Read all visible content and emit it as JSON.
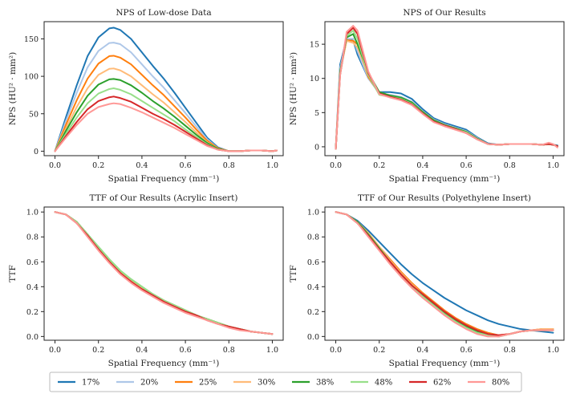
{
  "series_legend": [
    {
      "name": "17%",
      "color": "#1f77b4"
    },
    {
      "name": "20%",
      "color": "#aec7e8"
    },
    {
      "name": "25%",
      "color": "#ff7f0e"
    },
    {
      "name": "30%",
      "color": "#ffbb78"
    },
    {
      "name": "38%",
      "color": "#2ca02c"
    },
    {
      "name": "48%",
      "color": "#98df8a"
    },
    {
      "name": "62%",
      "color": "#d62728"
    },
    {
      "name": "80%",
      "color": "#ff9896"
    }
  ],
  "chart_data": [
    {
      "type": "line",
      "title": "NPS of Low-dose Data",
      "xlabel": "Spatial Frequency (mm⁻¹)",
      "ylabel": "NPS (HU² · mm²)",
      "xlim": [
        -0.05,
        1.05
      ],
      "ylim": [
        -6,
        173
      ],
      "xticks": [
        0,
        0.2,
        0.4,
        0.6,
        0.8,
        1.0
      ],
      "xtick_labels": [
        "0.0",
        "0.2",
        "0.4",
        "0.6",
        "0.8",
        "1.0"
      ],
      "yticks": [
        0,
        50,
        100,
        150
      ],
      "ytick_labels": [
        "0",
        "50",
        "100",
        "150"
      ],
      "x": [
        0,
        0.05,
        0.1,
        0.15,
        0.2,
        0.25,
        0.27,
        0.3,
        0.35,
        0.4,
        0.45,
        0.5,
        0.55,
        0.6,
        0.65,
        0.7,
        0.75,
        0.8,
        0.85,
        0.9,
        0.95,
        1.0,
        1.02
      ],
      "series": [
        {
          "name": "17%",
          "values": [
            0,
            45,
            88,
            127,
            152,
            164,
            165,
            162,
            150,
            132,
            114,
            97,
            78,
            58,
            38,
            18,
            5,
            0,
            0,
            1,
            1,
            0,
            1
          ]
        },
        {
          "name": "20%",
          "values": [
            0,
            40,
            78,
            112,
            134,
            144.5,
            145,
            143,
            132,
            116,
            100,
            85,
            68,
            51,
            33,
            16,
            4,
            0,
            0,
            1,
            1,
            0,
            1
          ]
        },
        {
          "name": "25%",
          "values": [
            0,
            35,
            68,
            97,
            117,
            127,
            127.5,
            125,
            116,
            102,
            88,
            75,
            60,
            45,
            29,
            14,
            4,
            0,
            0,
            1,
            1,
            0,
            1
          ]
        },
        {
          "name": "30%",
          "values": [
            0,
            30,
            59,
            84,
            102,
            110,
            110.5,
            108,
            100,
            88,
            76,
            65,
            52,
            39,
            25,
            12,
            3,
            0,
            0,
            1,
            1,
            0,
            1
          ]
        },
        {
          "name": "38%",
          "values": [
            0,
            27,
            52,
            74,
            89,
            96,
            96.5,
            95,
            88,
            78,
            67,
            57,
            46,
            34,
            22,
            11,
            3,
            0,
            0,
            1,
            1,
            0,
            1
          ]
        },
        {
          "name": "48%",
          "values": [
            0,
            23,
            45,
            64,
            77,
            83,
            84,
            82,
            76,
            67,
            58,
            49,
            40,
            29,
            19,
            9,
            2,
            0,
            0,
            1,
            1,
            0,
            1
          ]
        },
        {
          "name": "62%",
          "values": [
            0,
            20,
            39,
            56,
            67,
            72,
            73,
            71,
            66,
            58,
            50,
            43,
            35,
            26,
            17,
            8,
            2,
            0,
            0,
            1,
            1,
            0,
            1
          ]
        },
        {
          "name": "80%",
          "values": [
            0,
            18,
            35,
            50,
            59,
            63,
            64,
            63,
            58,
            52,
            45,
            38,
            31,
            23,
            15,
            7,
            2,
            0,
            0,
            1,
            1,
            0,
            1
          ]
        }
      ]
    },
    {
      "type": "line",
      "title": "NPS of Our Results",
      "xlabel": "Spatial Frequency (mm⁻¹)",
      "ylabel": "NPS (HU² · mm²)",
      "xlim": [
        -0.05,
        1.05
      ],
      "ylim": [
        -1.3,
        18.3
      ],
      "xticks": [
        0,
        0.2,
        0.4,
        0.6,
        0.8,
        1.0
      ],
      "xtick_labels": [
        "0.0",
        "0.2",
        "0.4",
        "0.6",
        "0.8",
        "1.0"
      ],
      "yticks": [
        0,
        5,
        10,
        15
      ],
      "ytick_labels": [
        "0",
        "5",
        "10",
        "15"
      ],
      "x": [
        0,
        0.02,
        0.05,
        0.08,
        0.1,
        0.15,
        0.2,
        0.25,
        0.3,
        0.35,
        0.4,
        0.45,
        0.5,
        0.55,
        0.6,
        0.65,
        0.7,
        0.75,
        0.8,
        0.85,
        0.9,
        0.95,
        0.98,
        1.0,
        1.02
      ],
      "series": [
        {
          "name": "17%",
          "values": [
            -0.3,
            12,
            15.8,
            15.6,
            13.5,
            10,
            8,
            8,
            7.8,
            7,
            5.5,
            4.2,
            3.5,
            3,
            2.5,
            1.4,
            0.5,
            0.3,
            0.4,
            0.4,
            0.4,
            0.3,
            0.4,
            0.3,
            0.2
          ]
        },
        {
          "name": "20%",
          "values": [
            -0.3,
            11.5,
            15.8,
            15.8,
            14,
            10,
            7.8,
            7.6,
            7.3,
            6.6,
            5.2,
            4,
            3.3,
            2.8,
            2.3,
            1.3,
            0.4,
            0.3,
            0.4,
            0.4,
            0.4,
            0.3,
            0.4,
            0.3,
            0.1
          ]
        },
        {
          "name": "25%",
          "values": [
            -0.3,
            11,
            15.6,
            15.5,
            15,
            10.2,
            7.8,
            7.4,
            7.1,
            6.4,
            5.1,
            3.9,
            3.2,
            2.7,
            2.2,
            1.2,
            0.4,
            0.3,
            0.4,
            0.4,
            0.4,
            0.3,
            0.4,
            0.3,
            0.1
          ]
        },
        {
          "name": "30%",
          "values": [
            -0.3,
            11,
            15.5,
            15.2,
            14.5,
            10.5,
            8,
            7.5,
            7.1,
            6.5,
            5.1,
            3.9,
            3.2,
            2.7,
            2.2,
            1.2,
            0.4,
            0.3,
            0.4,
            0.4,
            0.4,
            0.3,
            0.4,
            0.3,
            0.1
          ]
        },
        {
          "name": "38%",
          "values": [
            -0.3,
            11,
            16,
            16.5,
            15,
            10.8,
            8,
            7.5,
            7.2,
            6.5,
            5.1,
            3.9,
            3.2,
            2.7,
            2.2,
            1.2,
            0.4,
            0.3,
            0.4,
            0.4,
            0.4,
            0.3,
            0.4,
            0.3,
            0.1
          ]
        },
        {
          "name": "48%",
          "values": [
            -0.3,
            10.5,
            16.2,
            17,
            15.8,
            10.5,
            7.6,
            7.3,
            7,
            6.3,
            4.9,
            3.7,
            3.1,
            2.6,
            2.1,
            1.1,
            0.4,
            0.3,
            0.4,
            0.4,
            0.4,
            0.3,
            0.4,
            0.3,
            0.1
          ]
        },
        {
          "name": "62%",
          "values": [
            -0.3,
            10.5,
            16.5,
            17.4,
            16.5,
            10.8,
            7.8,
            7.3,
            6.9,
            6.2,
            4.9,
            3.7,
            3.1,
            2.6,
            2,
            1.1,
            0.4,
            0.3,
            0.4,
            0.4,
            0.4,
            0.3,
            0.4,
            0.3,
            0.1
          ]
        },
        {
          "name": "80%",
          "values": [
            -0.3,
            10.5,
            16.8,
            17.7,
            17,
            11,
            7.7,
            7.2,
            6.8,
            6.1,
            4.8,
            3.6,
            3,
            2.5,
            2,
            1.1,
            0.4,
            0.3,
            0.4,
            0.4,
            0.4,
            0.3,
            0.6,
            0.4,
            -0.1
          ]
        }
      ]
    },
    {
      "type": "line",
      "title": "TTF of Our Results (Acrylic Insert)",
      "xlabel": "Spatial Frequency (mm⁻¹)",
      "ylabel": "TTF",
      "xlim": [
        -0.05,
        1.05
      ],
      "ylim": [
        -0.03,
        1.04
      ],
      "xticks": [
        0,
        0.2,
        0.4,
        0.6,
        0.8,
        1.0
      ],
      "xtick_labels": [
        "0.0",
        "0.2",
        "0.4",
        "0.6",
        "0.8",
        "1.0"
      ],
      "yticks": [
        0,
        0.2,
        0.4,
        0.6,
        0.8,
        1.0
      ],
      "ytick_labels": [
        "0.0",
        "0.2",
        "0.4",
        "0.6",
        "0.8",
        "1.0"
      ],
      "x": [
        0,
        0.05,
        0.1,
        0.15,
        0.2,
        0.25,
        0.3,
        0.35,
        0.4,
        0.45,
        0.5,
        0.55,
        0.6,
        0.65,
        0.7,
        0.75,
        0.8,
        0.85,
        0.9,
        0.95,
        1.0
      ],
      "series": [
        {
          "name": "17%",
          "values": [
            1,
            0.98,
            0.92,
            0.82,
            0.71,
            0.61,
            0.52,
            0.45,
            0.39,
            0.34,
            0.29,
            0.25,
            0.21,
            0.17,
            0.14,
            0.11,
            0.08,
            0.06,
            0.04,
            0.03,
            0.02
          ]
        },
        {
          "name": "20%",
          "values": [
            1,
            0.98,
            0.92,
            0.82,
            0.71,
            0.61,
            0.52,
            0.45,
            0.39,
            0.34,
            0.29,
            0.25,
            0.21,
            0.17,
            0.14,
            0.11,
            0.08,
            0.06,
            0.04,
            0.03,
            0.02
          ]
        },
        {
          "name": "25%",
          "values": [
            1,
            0.98,
            0.92,
            0.82,
            0.71,
            0.61,
            0.52,
            0.45,
            0.39,
            0.34,
            0.29,
            0.25,
            0.21,
            0.17,
            0.14,
            0.11,
            0.08,
            0.06,
            0.04,
            0.03,
            0.02
          ]
        },
        {
          "name": "30%",
          "values": [
            1,
            0.98,
            0.92,
            0.82,
            0.71,
            0.61,
            0.52,
            0.45,
            0.39,
            0.34,
            0.29,
            0.25,
            0.21,
            0.17,
            0.14,
            0.11,
            0.08,
            0.06,
            0.04,
            0.03,
            0.02
          ]
        },
        {
          "name": "38%",
          "values": [
            1,
            0.98,
            0.92,
            0.82,
            0.72,
            0.62,
            0.53,
            0.46,
            0.4,
            0.34,
            0.29,
            0.25,
            0.21,
            0.17,
            0.14,
            0.11,
            0.08,
            0.06,
            0.04,
            0.03,
            0.02
          ]
        },
        {
          "name": "48%",
          "values": [
            1,
            0.98,
            0.92,
            0.82,
            0.72,
            0.62,
            0.53,
            0.46,
            0.4,
            0.34,
            0.29,
            0.25,
            0.21,
            0.17,
            0.14,
            0.11,
            0.08,
            0.06,
            0.04,
            0.03,
            0.02
          ]
        },
        {
          "name": "62%",
          "values": [
            1,
            0.98,
            0.91,
            0.81,
            0.7,
            0.6,
            0.51,
            0.44,
            0.38,
            0.33,
            0.28,
            0.24,
            0.2,
            0.17,
            0.13,
            0.1,
            0.08,
            0.06,
            0.04,
            0.03,
            0.02
          ]
        },
        {
          "name": "80%",
          "values": [
            1,
            0.98,
            0.91,
            0.8,
            0.69,
            0.59,
            0.5,
            0.43,
            0.37,
            0.32,
            0.27,
            0.23,
            0.19,
            0.16,
            0.13,
            0.1,
            0.07,
            0.05,
            0.04,
            0.03,
            0.02
          ]
        }
      ]
    },
    {
      "type": "line",
      "title": "TTF of Our Results (Polyethylene Insert)",
      "xlabel": "Spatial Frequency (mm⁻¹)",
      "ylabel": "TTF",
      "xlim": [
        -0.05,
        1.05
      ],
      "ylim": [
        -0.03,
        1.04
      ],
      "xticks": [
        0,
        0.2,
        0.4,
        0.6,
        0.8,
        1.0
      ],
      "xtick_labels": [
        "0.0",
        "0.2",
        "0.4",
        "0.6",
        "0.8",
        "1.0"
      ],
      "yticks": [
        0,
        0.2,
        0.4,
        0.6,
        0.8,
        1.0
      ],
      "ytick_labels": [
        "0.0",
        "0.2",
        "0.4",
        "0.6",
        "0.8",
        "1.0"
      ],
      "x": [
        0,
        0.05,
        0.1,
        0.15,
        0.2,
        0.25,
        0.3,
        0.35,
        0.4,
        0.45,
        0.5,
        0.55,
        0.6,
        0.65,
        0.7,
        0.75,
        0.8,
        0.85,
        0.9,
        0.95,
        1.0
      ],
      "series": [
        {
          "name": "17%",
          "values": [
            1,
            0.98,
            0.93,
            0.85,
            0.76,
            0.67,
            0.58,
            0.5,
            0.43,
            0.37,
            0.31,
            0.26,
            0.21,
            0.17,
            0.13,
            0.1,
            0.08,
            0.06,
            0.05,
            0.04,
            0.03
          ]
        },
        {
          "name": "20%",
          "values": [
            1,
            0.98,
            0.92,
            0.83,
            0.72,
            0.62,
            0.52,
            0.43,
            0.35,
            0.28,
            0.21,
            0.15,
            0.1,
            0.06,
            0.03,
            0.01,
            0.02,
            0.04,
            0.05,
            0.06,
            0.06
          ]
        },
        {
          "name": "25%",
          "values": [
            1,
            0.98,
            0.92,
            0.83,
            0.72,
            0.62,
            0.52,
            0.43,
            0.35,
            0.28,
            0.21,
            0.15,
            0.1,
            0.06,
            0.03,
            0.01,
            0.02,
            0.04,
            0.05,
            0.06,
            0.06
          ]
        },
        {
          "name": "30%",
          "values": [
            1,
            0.98,
            0.92,
            0.83,
            0.72,
            0.61,
            0.51,
            0.42,
            0.34,
            0.27,
            0.2,
            0.14,
            0.09,
            0.05,
            0.02,
            0.01,
            0.02,
            0.04,
            0.05,
            0.06,
            0.06
          ]
        },
        {
          "name": "38%",
          "values": [
            1,
            0.98,
            0.92,
            0.82,
            0.71,
            0.6,
            0.5,
            0.41,
            0.33,
            0.26,
            0.19,
            0.13,
            0.08,
            0.04,
            0.01,
            0,
            0.02,
            0.04,
            0.05,
            0.05,
            0.05
          ]
        },
        {
          "name": "48%",
          "values": [
            1,
            0.98,
            0.91,
            0.81,
            0.7,
            0.59,
            0.49,
            0.4,
            0.32,
            0.25,
            0.18,
            0.12,
            0.07,
            0.03,
            0.01,
            0,
            0.02,
            0.04,
            0.05,
            0.05,
            0.05
          ]
        },
        {
          "name": "62%",
          "values": [
            1,
            0.98,
            0.91,
            0.81,
            0.7,
            0.6,
            0.5,
            0.41,
            0.34,
            0.27,
            0.2,
            0.14,
            0.09,
            0.05,
            0.02,
            0.01,
            0.02,
            0.04,
            0.05,
            0.05,
            0.05
          ]
        },
        {
          "name": "80%",
          "values": [
            1,
            0.98,
            0.91,
            0.8,
            0.69,
            0.58,
            0.48,
            0.39,
            0.31,
            0.24,
            0.17,
            0.11,
            0.06,
            0.02,
            0,
            0,
            0.02,
            0.04,
            0.05,
            0.05,
            0.05
          ]
        }
      ]
    }
  ]
}
